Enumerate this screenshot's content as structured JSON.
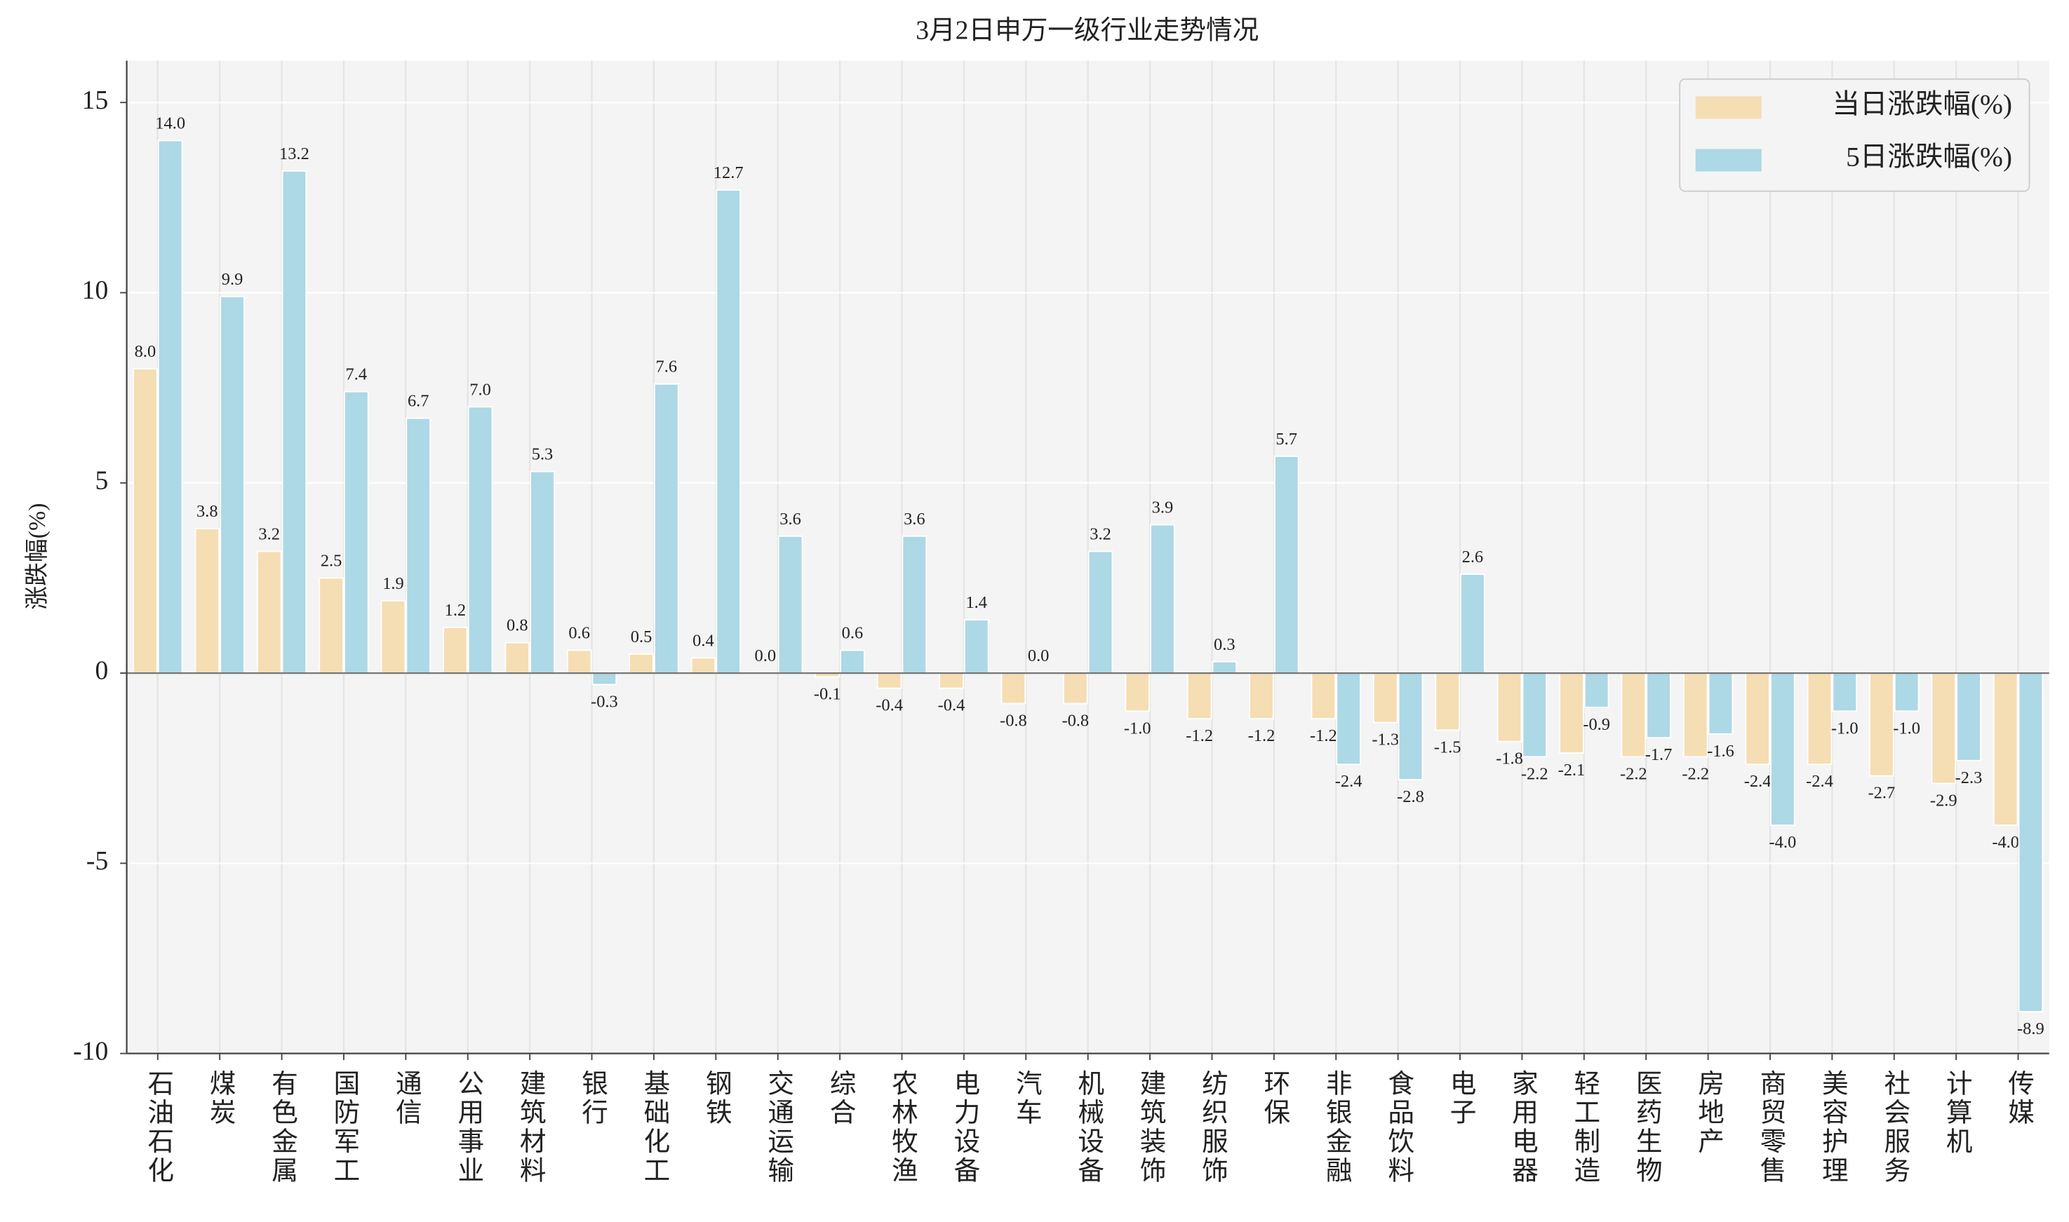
{
  "chart_data": {
    "type": "bar",
    "title": "3月2日申万一级行业走势情况",
    "y_label": "涨跌幅(%)",
    "categories": [
      "石油石化",
      "煤炭",
      "有色金属",
      "国防军工",
      "通信",
      "公用事业",
      "建筑材料",
      "银行",
      "基础化工",
      "钢铁",
      "交通运输",
      "综合",
      "农林牧渔",
      "电力设备",
      "汽车",
      "机械设备",
      "建筑装饰",
      "纺织服饰",
      "环保",
      "非银金融",
      "食品饮料",
      "电子",
      "家用电器",
      "轻工制造",
      "医药生物",
      "房地产",
      "商贸零售",
      "美容护理",
      "社会服务",
      "计算机",
      "传媒"
    ],
    "series": [
      {
        "name": "当日涨跌幅(%)",
        "color": "#f5deb3",
        "values": [
          8.0,
          3.8,
          3.2,
          2.5,
          1.9,
          1.2,
          0.8,
          0.6,
          0.5,
          0.4,
          0.0,
          -0.1,
          -0.4,
          -0.4,
          -0.8,
          -0.8,
          -1.0,
          -1.2,
          -1.2,
          -1.2,
          -1.3,
          -1.5,
          -1.8,
          -2.1,
          -2.2,
          -2.2,
          -2.4,
          -2.4,
          -2.7,
          -2.9,
          -4.0
        ],
        "value_labels": [
          "8.0",
          "3.8",
          "3.2",
          "2.5",
          "1.9",
          "1.2",
          "0.8",
          "0.6",
          "0.5",
          "0.4",
          "0.0",
          "-0.1",
          "-0.4",
          "-0.4",
          "-0.8",
          "-0.8",
          "-1.0",
          "-1.2",
          "-1.2",
          "-1.2",
          "-1.3",
          "-1.5",
          "-1.8",
          "-2.1",
          "-2.2",
          "-2.2",
          "-2.4",
          "-2.4",
          "-2.7",
          "-2.9",
          "-4.0"
        ]
      },
      {
        "name": "5日涨跌幅(%)",
        "color": "#add8e6",
        "values": [
          14.0,
          9.9,
          13.2,
          7.4,
          6.7,
          7.0,
          5.3,
          -0.3,
          7.6,
          12.7,
          3.6,
          0.6,
          3.6,
          1.4,
          0.0,
          3.2,
          3.9,
          0.3,
          5.7,
          -2.4,
          -2.8,
          2.6,
          -2.2,
          -0.9,
          -1.7,
          -1.6,
          -4.0,
          -1.0,
          -1.0,
          -2.3,
          -8.9
        ],
        "value_labels": [
          "14.0",
          "9.9",
          "13.2",
          "7.4",
          "6.7",
          "7.0",
          "5.3",
          "-0.3",
          "7.6",
          "12.7",
          "3.6",
          "0.6",
          "3.6",
          "1.4",
          "0.0",
          "3.2",
          "3.9",
          "0.3",
          "5.7",
          "-2.4",
          "-2.8",
          "2.6",
          "-2.2",
          "-0.9",
          "-1.7",
          "-1.6",
          "-4.0",
          "-1.0",
          "-1.0",
          "-2.3",
          "-8.9"
        ]
      }
    ],
    "ylim": [
      -10,
      16.1
    ],
    "yticks": [
      -10,
      -5,
      0,
      5,
      10,
      15
    ],
    "grid": true,
    "legend": "upper right"
  }
}
